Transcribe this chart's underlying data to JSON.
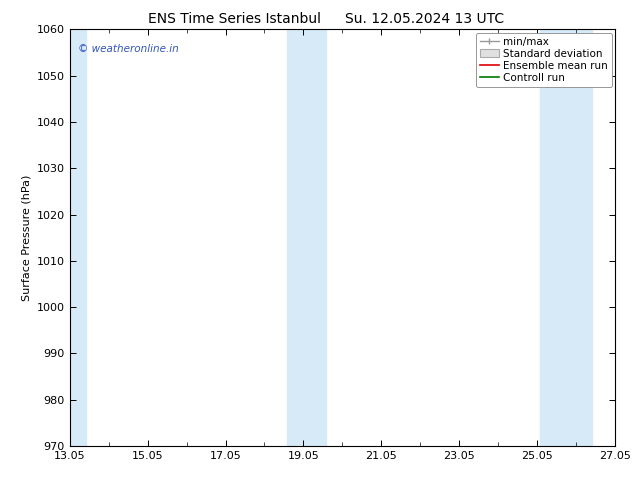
{
  "title_left": "ENS Time Series Istanbul",
  "title_right": "Su. 12.05.2024 13 UTC",
  "ylabel": "Surface Pressure (hPa)",
  "ylim": [
    970,
    1060
  ],
  "yticks": [
    970,
    980,
    990,
    1000,
    1010,
    1020,
    1030,
    1040,
    1050,
    1060
  ],
  "x_start_day": 0,
  "x_num_days": 14,
  "xtick_labels": [
    "13.05",
    "15.05",
    "17.05",
    "19.05",
    "21.05",
    "23.05",
    "25.05",
    "27.05"
  ],
  "xtick_positions": [
    0,
    2,
    4,
    6,
    8,
    10,
    12,
    14
  ],
  "shaded_bands": [
    {
      "x_start": 0.0,
      "x_end": 0.42,
      "color": "#d6eaf8"
    },
    {
      "x_start": 5.58,
      "x_end": 6.58,
      "color": "#d6eaf8"
    },
    {
      "x_start": 12.08,
      "x_end": 13.42,
      "color": "#d6eaf8"
    }
  ],
  "watermark_text": "© weatheronline.in",
  "watermark_color": "#3355bb",
  "legend_labels": [
    "min/max",
    "Standard deviation",
    "Ensemble mean run",
    "Controll run"
  ],
  "legend_colors_line": [
    "#999999",
    "#cccccc",
    "#dd0000",
    "#007700"
  ],
  "background_color": "#ffffff",
  "plot_bg_color": "#ffffff",
  "title_fontsize": 10,
  "axis_label_fontsize": 8,
  "tick_fontsize": 8,
  "legend_fontsize": 7.5
}
